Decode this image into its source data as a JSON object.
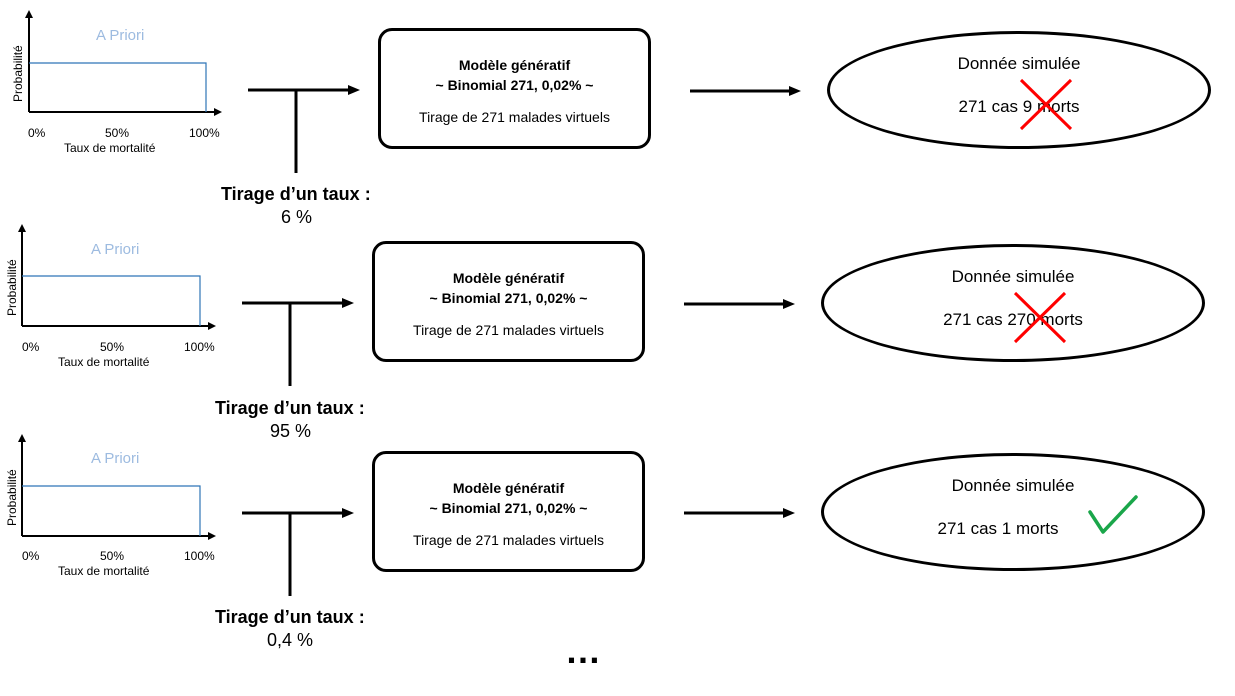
{
  "rows": [
    {
      "prior": {
        "title": "A Priori",
        "ylabel": "Probabilité",
        "xlabel": "Taux de mortalité",
        "ticks": [
          "0%",
          "50%",
          "100%"
        ]
      },
      "tirage": {
        "label": "Tirage d’un taux :",
        "value": "6 %"
      },
      "model": {
        "title": "Modèle génératif",
        "subtitle": "~ Binomial 271, 0,02% ~",
        "desc": "Tirage de 271 malades virtuels"
      },
      "result": {
        "title": "Donnée simulée",
        "text": "271 cas 9 morts",
        "status": "rejected",
        "mark_color": "#ff0000"
      }
    },
    {
      "prior": {
        "title": "A Priori",
        "ylabel": "Probabilité",
        "xlabel": "Taux de mortalité",
        "ticks": [
          "0%",
          "50%",
          "100%"
        ]
      },
      "tirage": {
        "label": "Tirage d’un taux :",
        "value": "95 %"
      },
      "model": {
        "title": "Modèle génératif",
        "subtitle": "~ Binomial 271, 0,02% ~",
        "desc": "Tirage de 271 malades virtuels"
      },
      "result": {
        "title": "Donnée simulée",
        "text": "271 cas 270 morts",
        "status": "rejected",
        "mark_color": "#ff0000"
      }
    },
    {
      "prior": {
        "title": "A Priori",
        "ylabel": "Probabilité",
        "xlabel": "Taux de mortalité",
        "ticks": [
          "0%",
          "50%",
          "100%"
        ]
      },
      "tirage": {
        "label": "Tirage d’un taux :",
        "value": "0,4 %"
      },
      "model": {
        "title": "Modèle génératif",
        "subtitle": "~ Binomial 271, 0,02% ~",
        "desc": "Tirage de 271 malades virtuels"
      },
      "result": {
        "title": "Donnée simulée",
        "text": "271 cas 1 morts",
        "status": "accepted",
        "mark_color": "#1aa64a"
      }
    }
  ],
  "ellipsis": "…",
  "colors": {
    "prior_line": "#2e75b6",
    "prior_title": "#9dbbe0"
  }
}
